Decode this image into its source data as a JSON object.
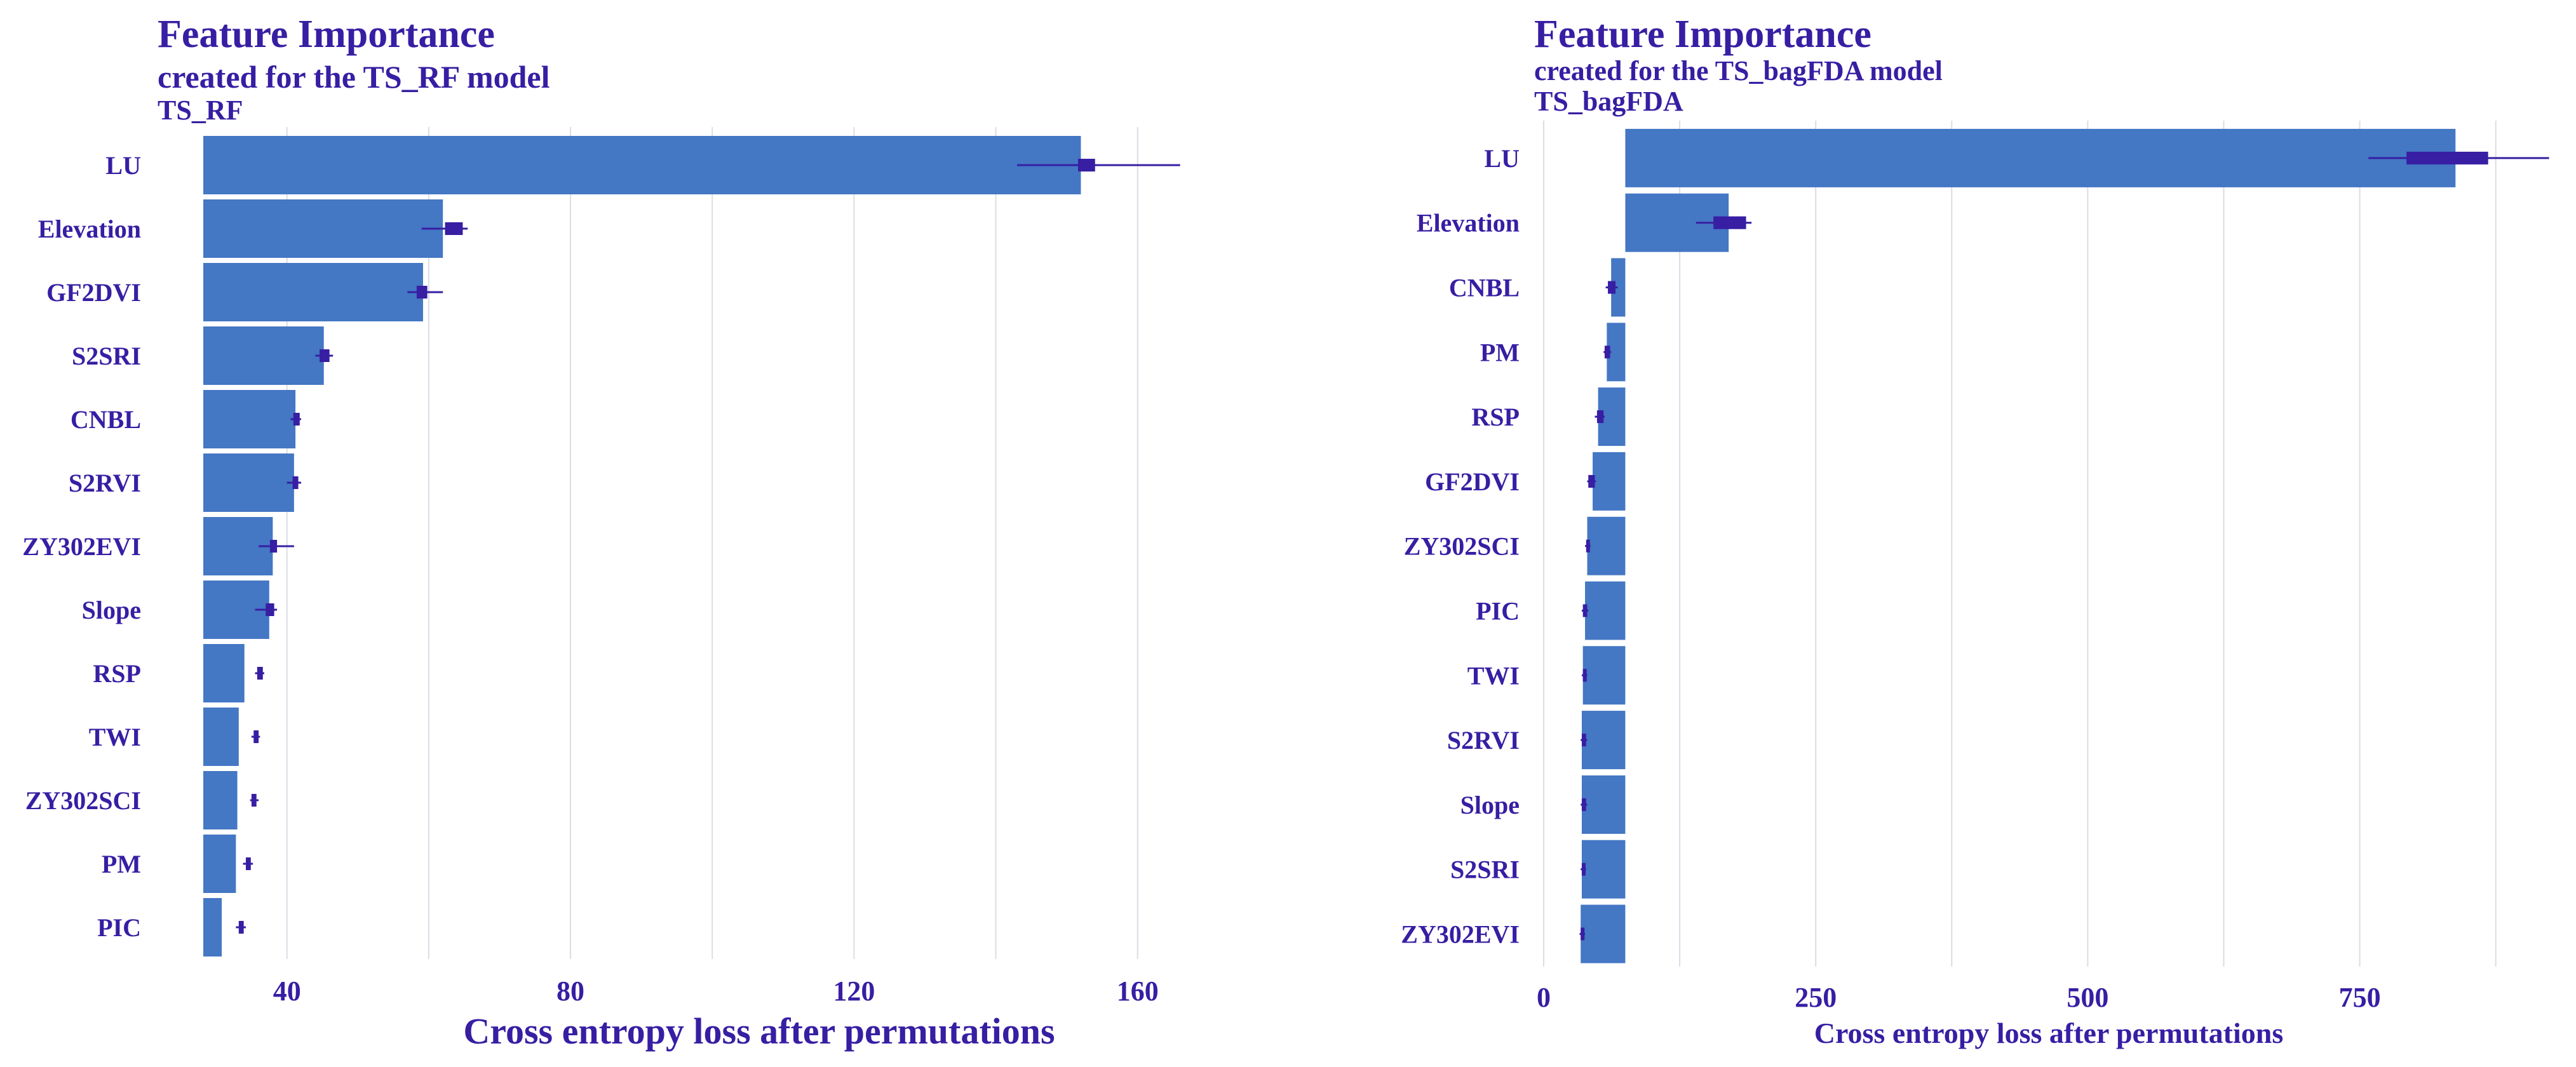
{
  "colors": {
    "bar": "#4477c4",
    "text": "#371ea3",
    "whisker": "#371ea3",
    "grid": "#dcdce6"
  },
  "chart_data": [
    {
      "type": "bar",
      "orientation": "horizontal",
      "title": "Feature Importance",
      "subtitle": "created for the TS_RF model",
      "panel_label": "TS_RF",
      "xlabel": "Cross entropy loss after permutations",
      "ylabel": "",
      "baseline": 28.2,
      "xlim": [
        23,
        168
      ],
      "xticks": [
        40,
        80,
        120,
        160
      ],
      "grid": true,
      "categories": [
        "LU",
        "Elevation",
        "GF2DVI",
        "S2SRI",
        "CNBL",
        "S2RVI",
        "ZY302EVI",
        "Slope",
        "RSP",
        "TWI",
        "ZY302SCI",
        "PM",
        "PIC"
      ],
      "values": [
        152.0,
        62.0,
        59.2,
        45.2,
        41.2,
        41.0,
        38.0,
        37.5,
        34.0,
        33.2,
        33.0,
        32.8,
        30.8
      ],
      "boxes": [
        {
          "low": 151.6,
          "high": 154.0,
          "min": 143.0,
          "max": 166.0
        },
        {
          "low": 62.3,
          "high": 64.8,
          "min": 59.0,
          "max": 65.5
        },
        {
          "low": 58.3,
          "high": 59.8,
          "min": 57.0,
          "max": 62.0
        },
        {
          "low": 44.6,
          "high": 46.0,
          "min": 44.0,
          "max": 46.5
        },
        {
          "low": 40.9,
          "high": 41.8,
          "min": 40.5,
          "max": 42.0
        },
        {
          "low": 40.8,
          "high": 41.6,
          "min": 40.0,
          "max": 42.0
        },
        {
          "low": 37.6,
          "high": 38.6,
          "min": 36.0,
          "max": 41.0
        },
        {
          "low": 37.0,
          "high": 38.2,
          "min": 35.5,
          "max": 38.6
        },
        {
          "low": 35.8,
          "high": 36.6,
          "min": 35.5,
          "max": 36.8
        },
        {
          "low": 35.3,
          "high": 36.0,
          "min": 35.0,
          "max": 36.2
        },
        {
          "low": 35.0,
          "high": 35.7,
          "min": 34.8,
          "max": 36.0
        },
        {
          "low": 34.2,
          "high": 34.9,
          "min": 33.8,
          "max": 35.2
        },
        {
          "low": 33.2,
          "high": 33.9,
          "min": 32.8,
          "max": 34.2
        }
      ]
    },
    {
      "type": "bar",
      "orientation": "horizontal",
      "title": "Feature Importance",
      "subtitle": "created for the TS_bagFDA model",
      "panel_label": "TS_bagFDA",
      "xlabel": "Cross entropy loss after permutations",
      "ylabel": "",
      "baseline": 75,
      "xlim": [
        0,
        940
      ],
      "xticks": [
        0,
        250,
        500,
        750
      ],
      "grid": true,
      "categories": [
        "LU",
        "Elevation",
        "CNBL",
        "PM",
        "RSP",
        "GF2DVI",
        "ZY302SCI",
        "PIC",
        "TWI",
        "S2RVI",
        "Slope",
        "S2SRI",
        "ZY302EVI"
      ],
      "values": [
        838,
        170,
        62,
        58,
        50,
        45,
        40,
        38,
        36,
        35,
        35,
        35,
        34
      ],
      "boxes": [
        {
          "low": 793,
          "high": 868,
          "min": 758,
          "max": 924
        },
        {
          "low": 156,
          "high": 186,
          "min": 140,
          "max": 191
        },
        {
          "low": 59,
          "high": 66,
          "min": 57,
          "max": 68
        },
        {
          "low": 56,
          "high": 61,
          "min": 55,
          "max": 62
        },
        {
          "low": 49,
          "high": 55,
          "min": 47,
          "max": 56
        },
        {
          "low": 41,
          "high": 47,
          "min": 40,
          "max": 48
        },
        {
          "low": 39,
          "high": 42,
          "min": 38,
          "max": 43
        },
        {
          "low": 36,
          "high": 40,
          "min": 35,
          "max": 41
        },
        {
          "low": 36,
          "high": 39,
          "min": 35,
          "max": 40
        },
        {
          "low": 35,
          "high": 39,
          "min": 34,
          "max": 40
        },
        {
          "low": 35,
          "high": 39,
          "min": 34,
          "max": 40
        },
        {
          "low": 35,
          "high": 38,
          "min": 34,
          "max": 39
        },
        {
          "low": 34,
          "high": 37,
          "min": 33,
          "max": 38
        }
      ]
    }
  ]
}
